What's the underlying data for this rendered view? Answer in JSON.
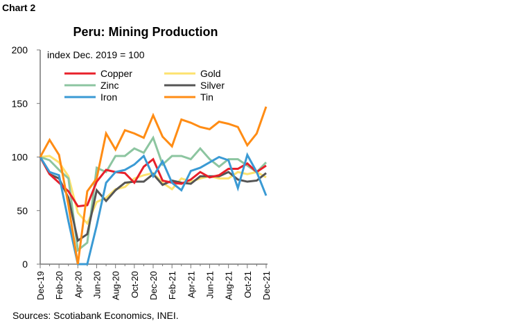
{
  "chart_label": "Chart 2",
  "source": "Sources: Scotiabank Economics, INEI.",
  "chart_data": {
    "type": "line",
    "title": "Peru: Mining Production",
    "annotation": "index Dec. 2019 = 100",
    "ylim": [
      0,
      200
    ],
    "yticks": [
      0,
      50,
      100,
      150,
      200
    ],
    "grid": false,
    "legend_position": "top-left",
    "x": [
      "Dec-19",
      "Jan-20",
      "Feb-20",
      "Mar-20",
      "Apr-20",
      "May-20",
      "Jun-20",
      "Jul-20",
      "Aug-20",
      "Sep-20",
      "Oct-20",
      "Nov-20",
      "Dec-20",
      "Jan-21",
      "Feb-21",
      "Mar-21",
      "Apr-21",
      "May-21",
      "Jun-21",
      "Jul-21",
      "Aug-21",
      "Sep-21",
      "Oct-21",
      "Nov-21",
      "Dec-21"
    ],
    "xtick_labels": [
      "Dec-19",
      "Feb-20",
      "Apr-20",
      "Jun-20",
      "Aug-20",
      "Oct-20",
      "Dec-20",
      "Feb-21",
      "Apr-21",
      "Jun-21",
      "Aug-21",
      "Oct-21",
      "Dec-21"
    ],
    "series": [
      {
        "name": "Copper",
        "color": "#e8202a",
        "values": [
          100,
          84,
          76,
          68,
          54,
          55,
          77,
          88,
          86,
          85,
          76,
          91,
          98,
          78,
          76,
          75,
          79,
          86,
          81,
          83,
          89,
          89,
          94,
          86,
          92
        ]
      },
      {
        "name": "Gold",
        "color": "#fde26e",
        "values": [
          100,
          101,
          95,
          82,
          48,
          38,
          58,
          62,
          70,
          72,
          80,
          83,
          85,
          76,
          70,
          80,
          77,
          80,
          82,
          80,
          80,
          86,
          84,
          86,
          81
        ]
      },
      {
        "name": "Zinc",
        "color": "#8cc5a0",
        "values": [
          100,
          97,
          88,
          80,
          13,
          20,
          90,
          86,
          101,
          101,
          108,
          104,
          118,
          93,
          101,
          101,
          98,
          108,
          98,
          91,
          98,
          98,
          92,
          86,
          95
        ]
      },
      {
        "name": "Silver",
        "color": "#555555",
        "values": [
          100,
          84,
          80,
          62,
          22,
          28,
          69,
          59,
          69,
          76,
          77,
          77,
          84,
          74,
          78,
          76,
          75,
          82,
          82,
          82,
          86,
          79,
          77,
          78,
          85
        ]
      },
      {
        "name": "Iron",
        "color": "#3a9ad4",
        "values": [
          100,
          86,
          83,
          40,
          0,
          0,
          36,
          76,
          86,
          88,
          93,
          101,
          82,
          96,
          76,
          69,
          87,
          90,
          95,
          100,
          97,
          71,
          102,
          86,
          64
        ]
      },
      {
        "name": "Tin",
        "color": "#ff8c14",
        "values": [
          100,
          116,
          102,
          55,
          0,
          68,
          80,
          122,
          107,
          125,
          122,
          118,
          139,
          119,
          110,
          135,
          132,
          128,
          126,
          133,
          131,
          128,
          111,
          122,
          147
        ]
      }
    ]
  }
}
